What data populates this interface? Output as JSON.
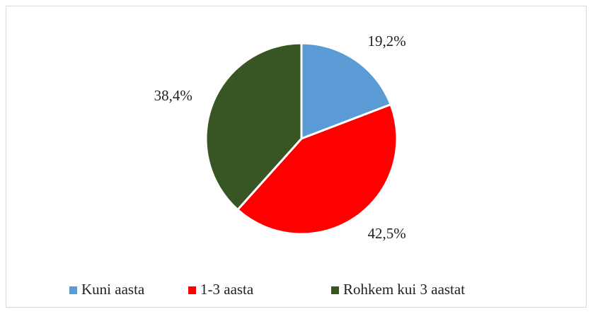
{
  "chart_data": {
    "type": "pie",
    "categories": [
      "Kuni aasta",
      "1-3 aasta",
      "Rohkem kui 3 aastat"
    ],
    "values": [
      19.2,
      42.5,
      38.4
    ],
    "value_labels": [
      "19,2%",
      "42,5%",
      "38,4%"
    ],
    "colors": [
      "#5b9bd5",
      "#ff0000",
      "#375623"
    ],
    "legend": "bottom"
  }
}
